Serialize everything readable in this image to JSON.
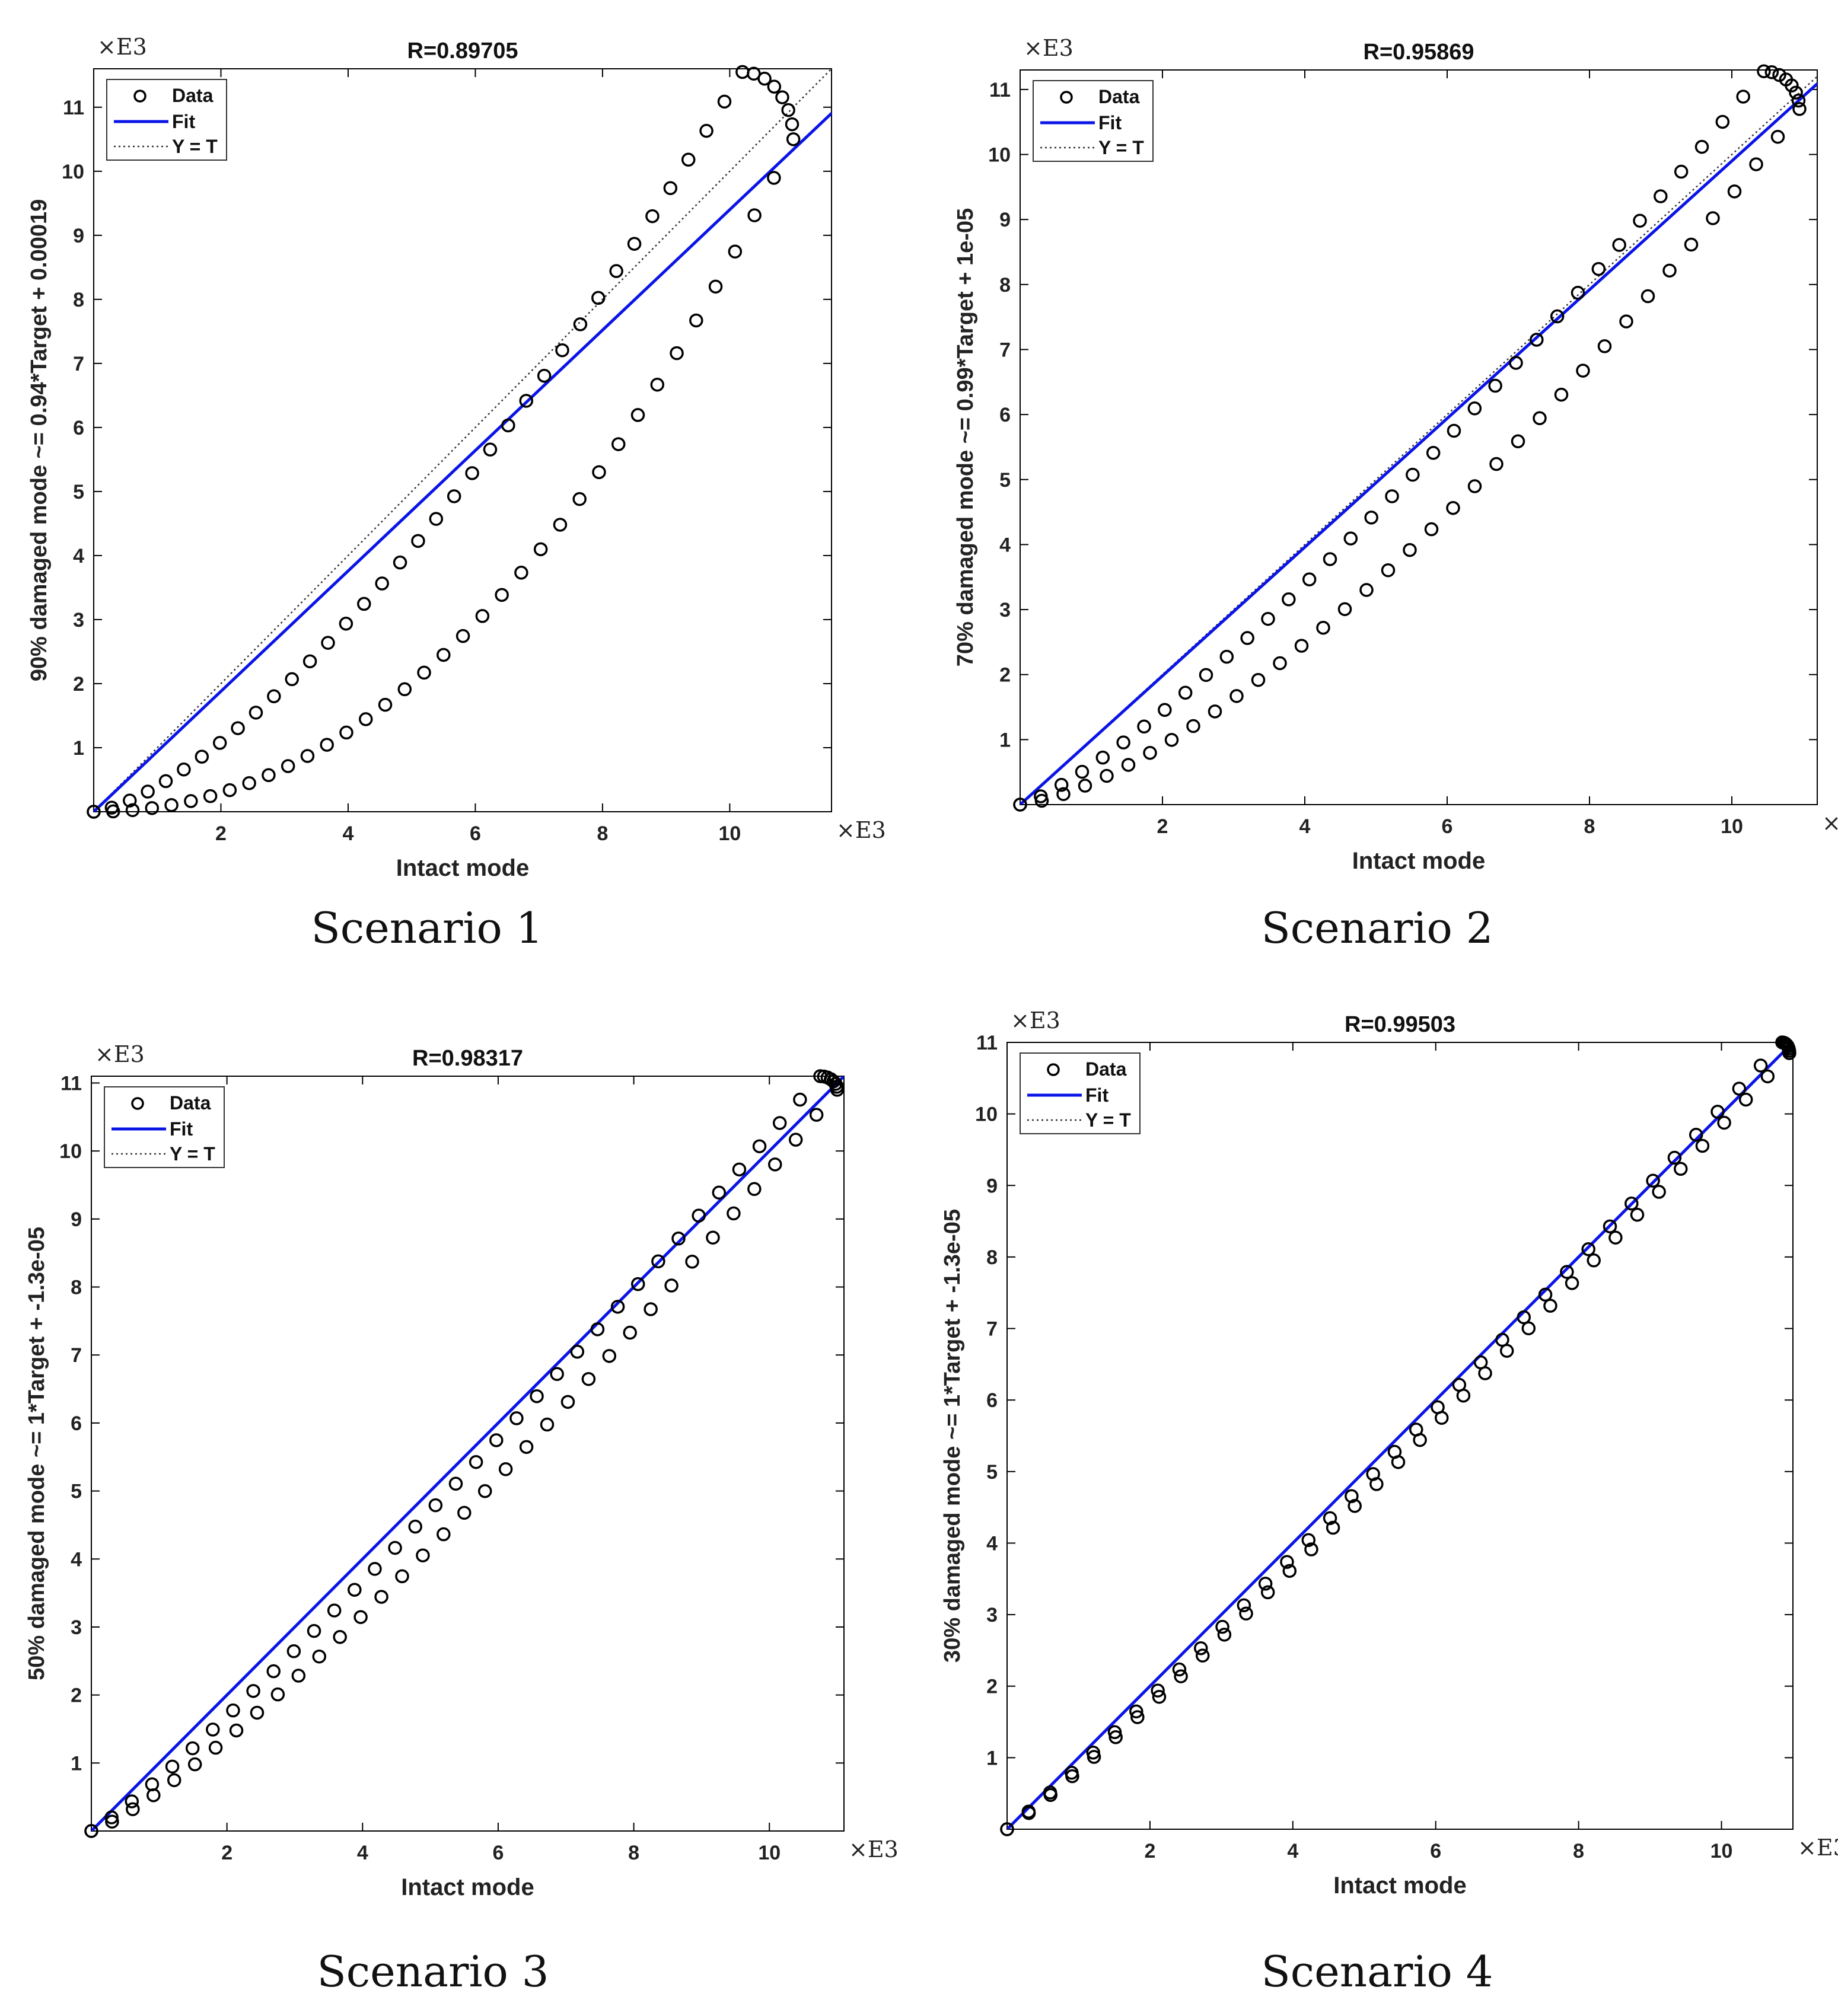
{
  "colors": {
    "fit": "#0a14e6",
    "data_marker": "#000000",
    "axes": "#000000",
    "background": "#ffffff"
  },
  "chart_data": [
    {
      "type": "scatter",
      "scenario_label": "Scenario 1",
      "title": "R=0.89705",
      "xlabel": "Intact mode",
      "ylabel": "90% damaged mode ~= 0.94*Target + 0.00019",
      "x_exponent_label": "×E3",
      "y_exponent_label": "×E3",
      "xlim": [
        0,
        11.6
      ],
      "ylim": [
        0,
        11.6
      ],
      "xticks": [
        2,
        4,
        6,
        8,
        10
      ],
      "yticks": [
        1,
        2,
        3,
        4,
        5,
        6,
        7,
        8,
        9,
        10,
        11
      ],
      "legend": {
        "position": "top-left",
        "entries": [
          "Data",
          "Fit",
          "Y = T"
        ]
      },
      "fit": {
        "slope": 0.94,
        "intercept": 0.00019
      },
      "loop": {
        "xmax": 11,
        "ymax": 11.55,
        "y_at_xmax": 10.5,
        "peak_x": 10.2,
        "upper_power": 1.45,
        "lower_power": 2.1,
        "n": 36
      }
    },
    {
      "type": "scatter",
      "scenario_label": "Scenario 2",
      "title": "R=0.95869",
      "xlabel": "Intact mode",
      "ylabel": "70% damaged mode ~= 0.99*Target + 1e-05",
      "x_exponent_label": "×E3",
      "y_exponent_label": "×E3",
      "xlim": [
        0,
        11.2
      ],
      "ylim": [
        0,
        11.3
      ],
      "xticks": [
        2,
        4,
        6,
        8,
        10
      ],
      "yticks": [
        1,
        2,
        3,
        4,
        5,
        6,
        7,
        8,
        9,
        10,
        11
      ],
      "legend": {
        "position": "top-left",
        "entries": [
          "Data",
          "Fit",
          "Y = T"
        ]
      },
      "fit": {
        "slope": 0.99,
        "intercept": 1e-05
      },
      "loop": {
        "xmax": 10.95,
        "ymax": 11.28,
        "y_at_xmax": 10.7,
        "peak_x": 10.45,
        "upper_power": 1.25,
        "lower_power": 1.45,
        "n": 36
      }
    },
    {
      "type": "scatter",
      "scenario_label": "Scenario 3",
      "title": "R=0.98317",
      "xlabel": "Intact mode",
      "ylabel": "50% damaged mode ~= 1*Target + -1.3e-05",
      "x_exponent_label": "×E3",
      "y_exponent_label": "×E3",
      "xlim": [
        0,
        11.1
      ],
      "ylim": [
        0,
        11.1
      ],
      "xticks": [
        2,
        4,
        6,
        8,
        10
      ],
      "yticks": [
        1,
        2,
        3,
        4,
        5,
        6,
        7,
        8,
        9,
        10,
        11
      ],
      "legend": {
        "position": "top-left",
        "entries": [
          "Data",
          "Fit",
          "Y = T"
        ]
      },
      "fit": {
        "slope": 1,
        "intercept": -1.3e-05
      },
      "loop": {
        "xmax": 11.0,
        "ymax": 11.1,
        "y_at_xmax": 10.9,
        "peak_x": 10.75,
        "upper_power": 1.12,
        "lower_power": 1.22,
        "n": 36
      }
    },
    {
      "type": "scatter",
      "scenario_label": "Scenario 4",
      "title": "R=0.99503",
      "xlabel": "Intact mode",
      "ylabel": "30% damaged mode ~= 1*Target + -1.3e-05",
      "x_exponent_label": "×E3",
      "y_exponent_label": "×E3",
      "xlim": [
        0,
        11.0
      ],
      "ylim": [
        0,
        11.0
      ],
      "xticks": [
        2,
        4,
        6,
        8,
        10
      ],
      "yticks": [
        1,
        2,
        3,
        4,
        5,
        6,
        7,
        8,
        9,
        10,
        11
      ],
      "legend": {
        "position": "top-left",
        "entries": [
          "Data",
          "Fit",
          "Y = T"
        ]
      },
      "fit": {
        "slope": 1,
        "intercept": -1.3e-05
      },
      "loop": {
        "xmax": 10.95,
        "ymax": 11.0,
        "y_at_xmax": 10.85,
        "peak_x": 10.85,
        "upper_power": 1.06,
        "lower_power": 1.08,
        "n": 36
      }
    }
  ]
}
